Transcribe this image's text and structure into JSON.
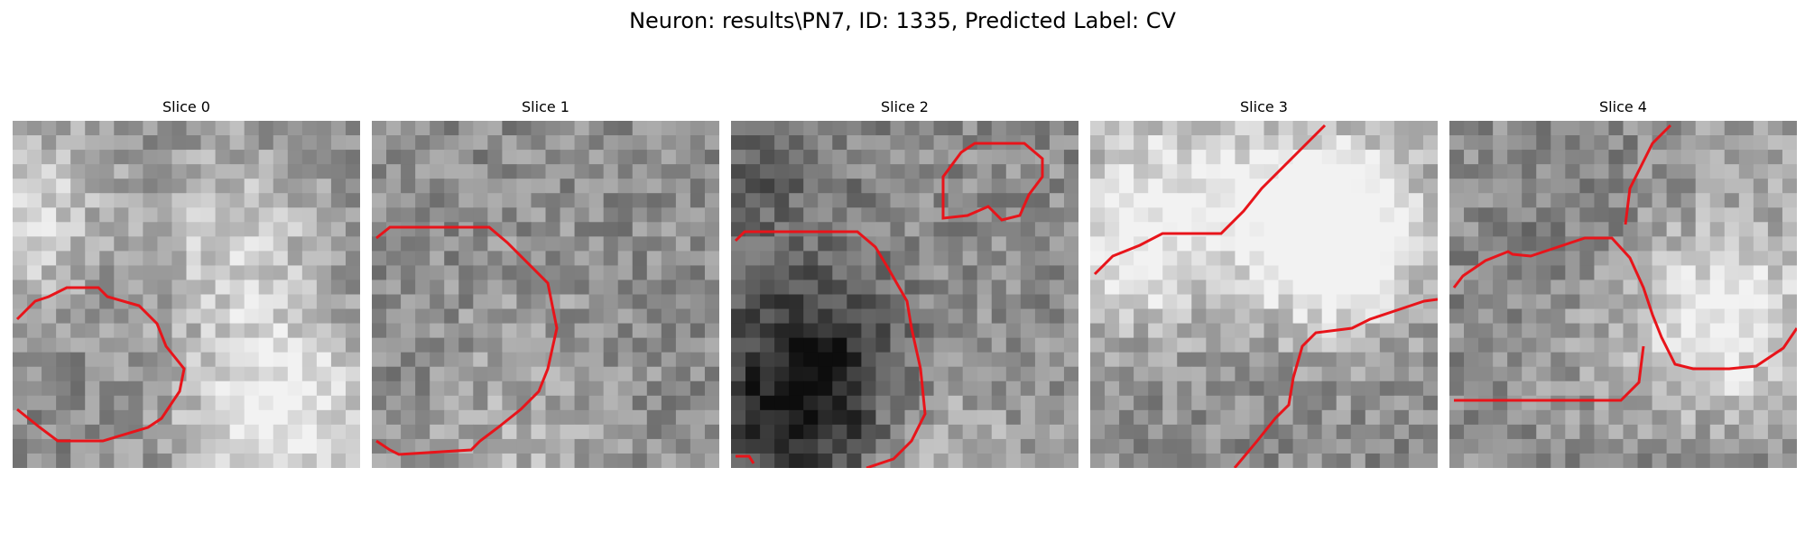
{
  "figure": {
    "title": "Neuron: results\\PN7, ID: 1335, Predicted Label: CV",
    "contour_color": "#e8141a"
  },
  "panels": [
    {
      "title": "Slice 0"
    },
    {
      "title": "Slice 1"
    },
    {
      "title": "Slice 2"
    },
    {
      "title": "Slice 3"
    },
    {
      "title": "Slice 4"
    }
  ]
}
